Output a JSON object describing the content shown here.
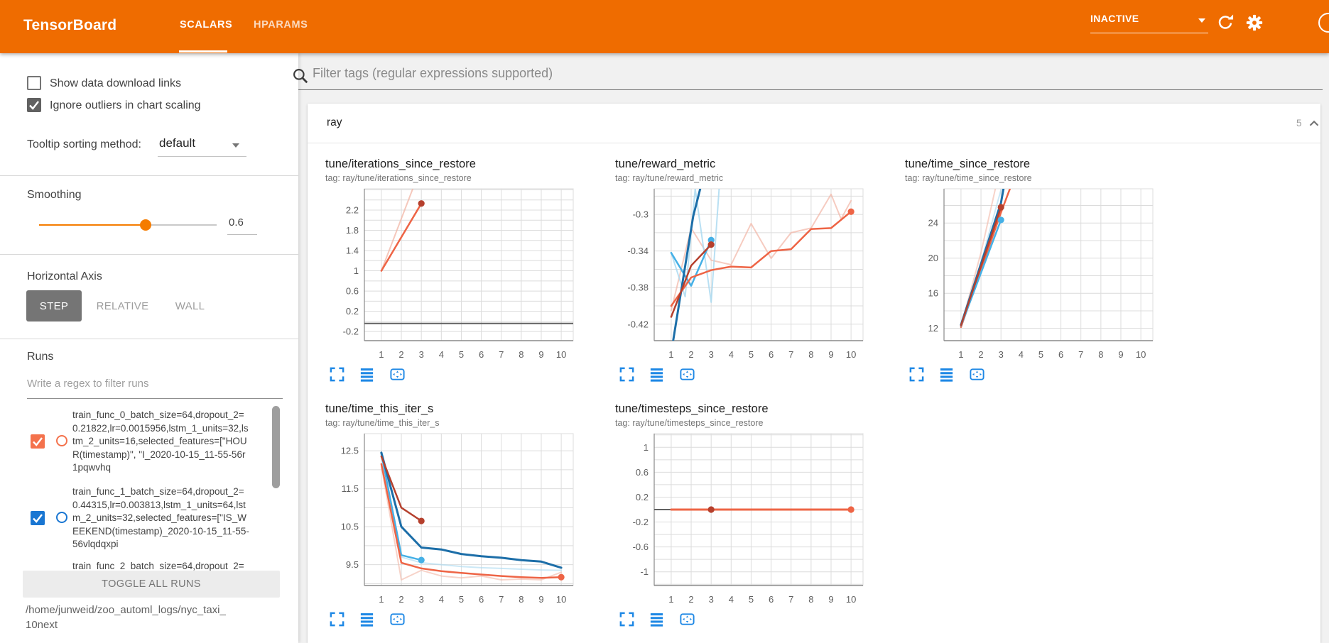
{
  "header": {
    "title": "TensorBoard",
    "tabs": [
      {
        "label": "SCALARS",
        "active": true
      },
      {
        "label": "HPARAMS",
        "active": false
      }
    ],
    "status": "INACTIVE",
    "accent_color": "#ef6c00"
  },
  "sidebar": {
    "checkboxes": [
      {
        "label": "Show data download links",
        "checked": false
      },
      {
        "label": "Ignore outliers in chart scaling",
        "checked": true
      }
    ],
    "tooltip_sort": {
      "label": "Tooltip sorting method:",
      "value": "default"
    },
    "smoothing": {
      "label": "Smoothing",
      "value": "0.6",
      "fraction": 0.6
    },
    "horizontal_axis": {
      "label": "Horizontal Axis",
      "options": [
        "STEP",
        "RELATIVE",
        "WALL"
      ],
      "selected": "STEP"
    },
    "runs": {
      "label": "Runs",
      "filter_placeholder": "Write a regex to filter runs",
      "items": [
        {
          "color": "#f4724c",
          "checked": true,
          "lines": [
            "train_func_0_batch_size=64,dropout_2=",
            "0.21822,lr=0.0015956,lstm_1_units=32,ls",
            "tm_2_units=16,selected_features=[\"HOU",
            "R(timestamp)\", \"I_2020-10-15_11-55-56r",
            "1pqwvhq"
          ]
        },
        {
          "color": "#1976d2",
          "checked": true,
          "lines": [
            "train_func_1_batch_size=64,dropout_2=",
            "0.44315,lr=0.003813,lstm_1_units=64,lst",
            "m_2_units=32,selected_features=[\"IS_W",
            "EEKEND(timestamp)_2020-10-15_11-55-",
            "56vlqdqxpi"
          ]
        },
        {
          "color": "",
          "checked": false,
          "lines": [
            "train_func_2_batch_size=64,dropout_2="
          ]
        }
      ],
      "toggle_all_label": "TOGGLE ALL RUNS"
    },
    "logdir_lines": [
      "/home/junweid/zoo_automl_logs/nyc_taxi_",
      "10next"
    ]
  },
  "main": {
    "filter_placeholder": "Filter tags (regular expressions supported)",
    "section": {
      "name": "ray",
      "count": "5"
    }
  },
  "chart_data": [
    {
      "type": "line",
      "title": "tune/iterations_since_restore",
      "tag": "tag: ray/tune/iterations_since_restore",
      "xlabel": "step",
      "xticks": [
        1,
        2,
        3,
        4,
        5,
        6,
        7,
        8,
        9,
        10
      ],
      "xlim": [
        0.15,
        10.6
      ],
      "ytick_values": [
        2.2,
        1.8,
        1.4,
        1.0,
        0.6,
        0.2,
        -0.2
      ],
      "ytick_labels": [
        "2.2",
        "1.8",
        "1.4",
        "1",
        "0.6",
        "0.2",
        "-0.2"
      ],
      "ylim": [
        -0.38,
        2.62
      ],
      "series": [
        {
          "name": "run0-raw",
          "color": "#f2b5a5",
          "width": 2,
          "opacity": 0.75,
          "points": [
            [
              1,
              1
            ],
            [
              2.6,
              2.65
            ]
          ]
        },
        {
          "name": "gray-flat",
          "color": "#616161",
          "width": 2,
          "opacity": 1,
          "points": [
            [
              0.15,
              -0.04
            ],
            [
              10.6,
              -0.04
            ]
          ]
        },
        {
          "name": "run0-smoothed",
          "color": "#ee6445",
          "width": 2.5,
          "opacity": 1,
          "points": [
            [
              1,
              1
            ],
            [
              3,
              2.33
            ]
          ]
        }
      ],
      "markers": [
        {
          "x": 3,
          "y": 2.33,
          "color": "#b5402d"
        }
      ]
    },
    {
      "type": "line",
      "title": "tune/reward_metric",
      "tag": "tag: ray/tune/reward_metric",
      "xlabel": "step",
      "xticks": [
        1,
        2,
        3,
        4,
        5,
        6,
        7,
        8,
        9,
        10
      ],
      "xlim": [
        0.15,
        10.6
      ],
      "ytick_values": [
        -0.3,
        -0.34,
        -0.38,
        -0.42
      ],
      "ytick_labels": [
        "-0.3",
        "-0.34",
        "-0.38",
        "-0.42"
      ],
      "ylim": [
        -0.438,
        -0.272
      ],
      "series": [
        {
          "name": "raw-pink",
          "color": "#f2b5a5",
          "width": 2,
          "opacity": 0.7,
          "points": [
            [
              1,
              -0.405
            ],
            [
              2,
              -0.315
            ],
            [
              3,
              -0.35
            ],
            [
              4,
              -0.355
            ],
            [
              5,
              -0.31
            ],
            [
              6,
              -0.348
            ],
            [
              7,
              -0.32
            ],
            [
              8,
              -0.315
            ],
            [
              9,
              -0.278
            ],
            [
              9.5,
              -0.305
            ],
            [
              10,
              -0.285
            ]
          ]
        },
        {
          "name": "raw-lightblue",
          "color": "#a8d8f0",
          "width": 2,
          "opacity": 0.8,
          "points": [
            [
              1,
              -0.342
            ],
            [
              1.7,
              -0.39
            ],
            [
              2.2,
              -0.272
            ],
            [
              3,
              -0.396
            ],
            [
              3.4,
              -0.272
            ]
          ]
        },
        {
          "name": "cyan-smoothed",
          "color": "#45b0e6",
          "width": 2.5,
          "opacity": 1,
          "points": [
            [
              1,
              -0.342
            ],
            [
              2,
              -0.378
            ],
            [
              3,
              -0.328
            ]
          ]
        },
        {
          "name": "orange-smoothed",
          "color": "#ee6445",
          "width": 2.5,
          "opacity": 1,
          "points": [
            [
              1,
              -0.4
            ],
            [
              2,
              -0.369
            ],
            [
              3,
              -0.361
            ],
            [
              4,
              -0.357
            ],
            [
              5,
              -0.358
            ],
            [
              6,
              -0.34
            ],
            [
              7,
              -0.338
            ],
            [
              8,
              -0.316
            ],
            [
              9,
              -0.315
            ],
            [
              10,
              -0.297
            ]
          ]
        },
        {
          "name": "blue-smoothed",
          "color": "#1c6ea8",
          "width": 3,
          "opacity": 1,
          "points": [
            [
              1.1,
              -0.438
            ],
            [
              2.1,
              -0.302
            ],
            [
              2.5,
              -0.268
            ]
          ]
        },
        {
          "name": "darkred-smoothed",
          "color": "#b5402d",
          "width": 2.5,
          "opacity": 1,
          "points": [
            [
              1,
              -0.412
            ],
            [
              2,
              -0.356
            ],
            [
              3,
              -0.333
            ]
          ]
        }
      ],
      "markers": [
        {
          "x": 3,
          "y": -0.328,
          "color": "#45b0e6"
        },
        {
          "x": 3,
          "y": -0.333,
          "color": "#b5402d"
        },
        {
          "x": 10,
          "y": -0.297,
          "color": "#ee6445"
        }
      ]
    },
    {
      "type": "line",
      "title": "tune/time_since_restore",
      "tag": "tag: ray/tune/time_since_restore",
      "xlabel": "step",
      "xticks": [
        1,
        2,
        3,
        4,
        5,
        6,
        7,
        8,
        9,
        10
      ],
      "xlim": [
        0.15,
        10.6
      ],
      "ytick_values": [
        24,
        20,
        16,
        12
      ],
      "ytick_labels": [
        "24",
        "20",
        "16",
        "12"
      ],
      "ylim": [
        10.6,
        27.9
      ],
      "series": [
        {
          "name": "raw-pink",
          "color": "#f2b5a5",
          "width": 2,
          "opacity": 0.6,
          "points": [
            [
              1,
              12.2
            ],
            [
              2,
              20.6
            ],
            [
              2.75,
              28.2
            ]
          ]
        },
        {
          "name": "raw-lightblue",
          "color": "#a8d8f0",
          "width": 2,
          "opacity": 0.6,
          "points": [
            [
              1,
              12.4
            ],
            [
              2,
              19.5
            ],
            [
              3.05,
              28.2
            ]
          ]
        },
        {
          "name": "orange",
          "color": "#ee6445",
          "width": 2.5,
          "opacity": 1,
          "points": [
            [
              1,
              12.15
            ],
            [
              3,
              25.2
            ],
            [
              3.5,
              28.2
            ]
          ]
        },
        {
          "name": "blue",
          "color": "#1c6ea8",
          "width": 3,
          "opacity": 1,
          "points": [
            [
              1,
              12.4
            ],
            [
              3,
              26.3
            ],
            [
              3.15,
              28.2
            ]
          ]
        },
        {
          "name": "cyan",
          "color": "#45b0e6",
          "width": 2.5,
          "opacity": 1,
          "points": [
            [
              1,
              12.3
            ],
            [
              3,
              24.35
            ]
          ]
        },
        {
          "name": "darkred",
          "color": "#b5402d",
          "width": 2.5,
          "opacity": 1,
          "points": [
            [
              1,
              12.35
            ],
            [
              3,
              25.8
            ]
          ]
        }
      ],
      "markers": [
        {
          "x": 3,
          "y": 25.8,
          "color": "#b5402d"
        },
        {
          "x": 3,
          "y": 24.35,
          "color": "#45b0e6"
        }
      ]
    },
    {
      "type": "line",
      "title": "tune/time_this_iter_s",
      "tag": "tag: ray/tune/time_this_iter_s",
      "xlabel": "step",
      "xticks": [
        1,
        2,
        3,
        4,
        5,
        6,
        7,
        8,
        9,
        10
      ],
      "xlim": [
        0.15,
        10.6
      ],
      "ytick_values": [
        12.5,
        11.5,
        10.5,
        9.5
      ],
      "ytick_labels": [
        "12.5",
        "11.5",
        "10.5",
        "9.5"
      ],
      "ylim": [
        8.95,
        12.95
      ],
      "series": [
        {
          "name": "raw-pink",
          "color": "#f2b5a5",
          "width": 2,
          "opacity": 0.6,
          "points": [
            [
              1,
              12.1
            ],
            [
              2,
              9.1
            ],
            [
              3,
              9.35
            ],
            [
              4,
              9.2
            ],
            [
              5,
              9.15
            ],
            [
              6,
              9.2
            ],
            [
              7,
              9.1
            ],
            [
              8,
              9.12
            ],
            [
              9,
              9.1
            ],
            [
              10,
              9.3
            ]
          ]
        },
        {
          "name": "raw-lightblue",
          "color": "#a8d8f0",
          "width": 2,
          "opacity": 0.6,
          "points": [
            [
              1,
              12.45
            ],
            [
              2,
              9.7
            ],
            [
              3,
              9.55
            ],
            [
              4,
              9.5
            ],
            [
              5,
              9.45
            ],
            [
              6,
              9.42
            ],
            [
              7,
              9.4
            ],
            [
              8,
              9.38
            ],
            [
              9,
              9.36
            ],
            [
              10,
              9.35
            ]
          ]
        },
        {
          "name": "cyan",
          "color": "#45b0e6",
          "width": 2.5,
          "opacity": 1,
          "points": [
            [
              1,
              12.42
            ],
            [
              2,
              9.75
            ],
            [
              3,
              9.62
            ]
          ]
        },
        {
          "name": "orange",
          "color": "#ee6445",
          "width": 2.5,
          "opacity": 1,
          "points": [
            [
              1,
              12.15
            ],
            [
              2,
              9.55
            ],
            [
              3,
              9.4
            ],
            [
              4,
              9.33
            ],
            [
              5,
              9.28
            ],
            [
              6,
              9.24
            ],
            [
              7,
              9.2
            ],
            [
              8,
              9.17
            ],
            [
              9,
              9.15
            ],
            [
              10,
              9.17
            ]
          ]
        },
        {
          "name": "blue",
          "color": "#1c6ea8",
          "width": 3,
          "opacity": 1,
          "points": [
            [
              1,
              12.45
            ],
            [
              2,
              10.5
            ],
            [
              3,
              9.95
            ],
            [
              4,
              9.9
            ],
            [
              5,
              9.78
            ],
            [
              6,
              9.72
            ],
            [
              7,
              9.68
            ],
            [
              8,
              9.62
            ],
            [
              9,
              9.58
            ],
            [
              10,
              9.42
            ]
          ]
        },
        {
          "name": "darkred",
          "color": "#b5402d",
          "width": 2.5,
          "opacity": 1,
          "points": [
            [
              1,
              12.35
            ],
            [
              2,
              11.0
            ],
            [
              3,
              10.65
            ]
          ]
        }
      ],
      "markers": [
        {
          "x": 3,
          "y": 10.65,
          "color": "#b5402d"
        },
        {
          "x": 3,
          "y": 9.62,
          "color": "#45b0e6"
        },
        {
          "x": 10,
          "y": 9.17,
          "color": "#ee6445"
        }
      ]
    },
    {
      "type": "line",
      "title": "tune/timesteps_since_restore",
      "tag": "tag: ray/tune/timesteps_since_restore",
      "xlabel": "step",
      "xticks": [
        1,
        2,
        3,
        4,
        5,
        6,
        7,
        8,
        9,
        10
      ],
      "xlim": [
        0.15,
        10.6
      ],
      "ytick_values": [
        1,
        0.6,
        0.2,
        -0.2,
        -0.6,
        -1
      ],
      "ytick_labels": [
        "1",
        "0.6",
        "0.2",
        "-0.2",
        "-0.6",
        "-1"
      ],
      "ylim": [
        -1.22,
        1.22
      ],
      "series": [
        {
          "name": "gray-flat",
          "color": "#616161",
          "width": 2,
          "opacity": 1,
          "points": [
            [
              0.15,
              0
            ],
            [
              1,
              0
            ]
          ]
        },
        {
          "name": "orange",
          "color": "#ee6445",
          "width": 3,
          "opacity": 1,
          "points": [
            [
              1,
              0
            ],
            [
              10,
              0
            ]
          ]
        }
      ],
      "markers": [
        {
          "x": 3,
          "y": 0,
          "color": "#b5402d"
        },
        {
          "x": 10,
          "y": 0,
          "color": "#ee6445"
        }
      ]
    }
  ]
}
